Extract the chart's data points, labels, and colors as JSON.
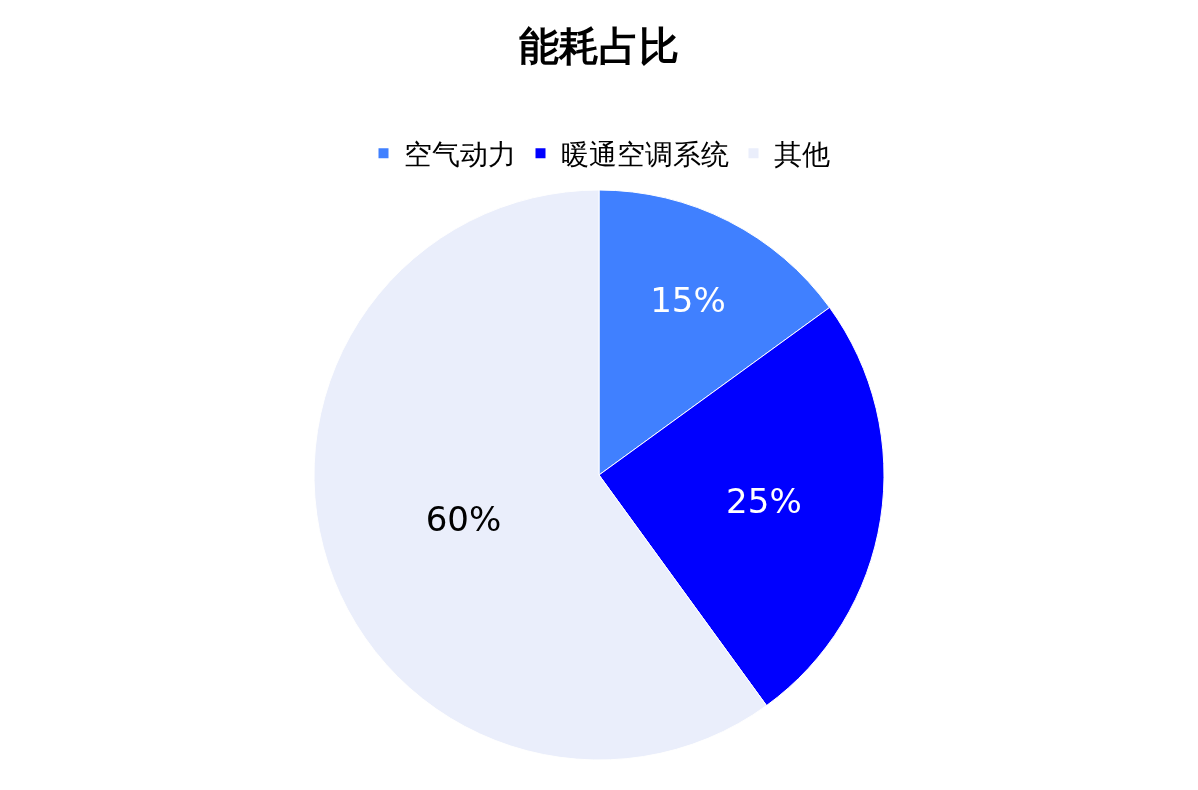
{
  "chart_data": {
    "type": "pie",
    "title": "能耗占比",
    "categories": [
      "空气动力",
      "暖通空调系统",
      "其他"
    ],
    "values": [
      15,
      25,
      60
    ],
    "colors": [
      "#4080ff",
      "#0000ff",
      "#eaeefb"
    ],
    "value_labels": [
      "15%",
      "25%",
      "60%"
    ],
    "legend": "top"
  }
}
